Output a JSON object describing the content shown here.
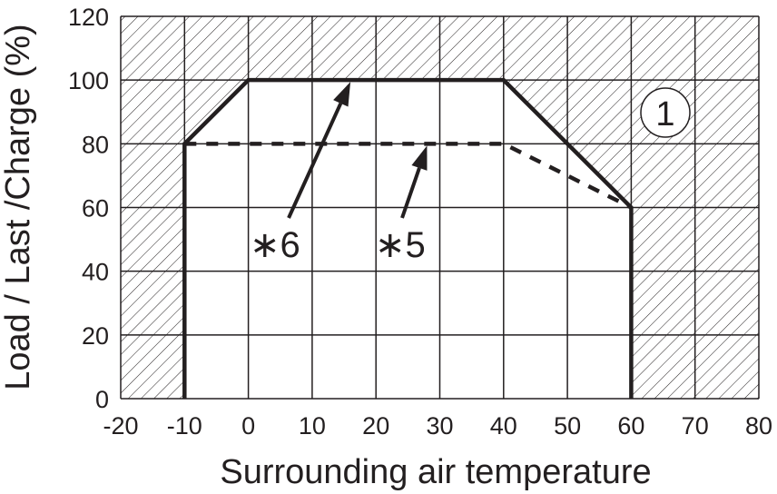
{
  "chart_data": {
    "type": "line",
    "title": "",
    "xlabel": "Surrounding air temperature",
    "ylabel": "Load / Last /Charge (%)",
    "xlim": [
      -20,
      80
    ],
    "ylim": [
      0,
      120
    ],
    "x_ticks": [
      -20,
      -10,
      0,
      10,
      20,
      30,
      40,
      50,
      60,
      70,
      80
    ],
    "y_ticks": [
      0,
      20,
      40,
      60,
      80,
      100,
      120
    ],
    "grid": true,
    "hatched_region": "outside the solid curve (not permitted)",
    "series": [
      {
        "name": "*6",
        "style": "solid",
        "x": [
          -10,
          -10,
          0,
          40,
          60,
          60
        ],
        "y": [
          0,
          80,
          100,
          100,
          60,
          0
        ]
      },
      {
        "name": "*5",
        "style": "dashed",
        "x": [
          -10,
          40,
          60
        ],
        "y": [
          80,
          80,
          60
        ]
      }
    ],
    "annotations": [
      {
        "text": "*6",
        "points_to": {
          "x": 16,
          "y": 100
        }
      },
      {
        "text": "*5",
        "points_to": {
          "x": 28,
          "y": 80
        }
      },
      {
        "text": "1",
        "style": "circled"
      }
    ],
    "colors": {
      "line": "#231f20",
      "background": "#ffffff"
    }
  }
}
